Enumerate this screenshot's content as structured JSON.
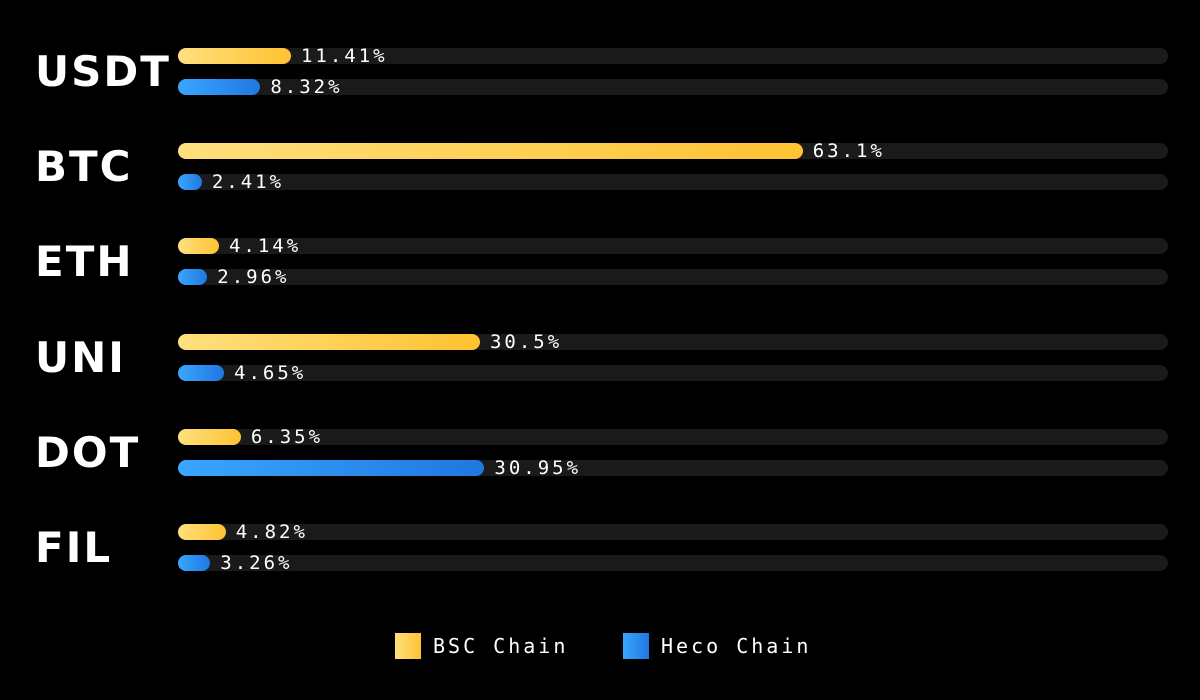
{
  "chart_data": {
    "type": "bar",
    "orientation": "horizontal",
    "categories": [
      "USDT",
      "BTC",
      "ETH",
      "UNI",
      "DOT",
      "FIL"
    ],
    "series": [
      {
        "name": "BSC Chain",
        "color": "#ffc232",
        "values": [
          11.41,
          63.1,
          4.14,
          30.5,
          6.35,
          4.82
        ],
        "labels": [
          "11.41%",
          "63.1%",
          "4.14%",
          "30.5%",
          "6.35%",
          "4.82%"
        ]
      },
      {
        "name": "Heco Chain",
        "color": "#2a8af0",
        "values": [
          8.32,
          2.41,
          2.96,
          4.65,
          30.95,
          3.26
        ],
        "labels": [
          "8.32%",
          "2.41%",
          "2.96%",
          "4.65%",
          "30.95%",
          "3.26%"
        ]
      }
    ],
    "xlim": [
      0,
      100
    ],
    "unit": "%",
    "grid": false,
    "legend_position": "bottom-center"
  },
  "legend": {
    "items": [
      {
        "label": "BSC Chain",
        "color": "#ffc232"
      },
      {
        "label": "Heco Chain",
        "color": "#2a8af0"
      }
    ]
  }
}
